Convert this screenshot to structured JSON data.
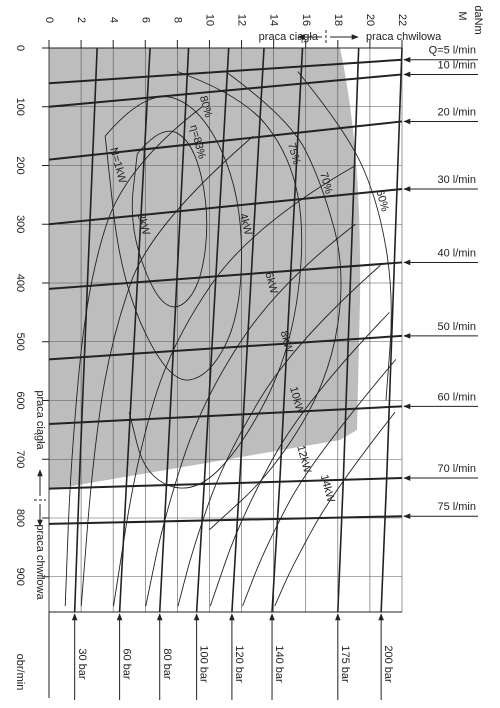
{
  "chart_data": {
    "type": "performance-map",
    "x_label": "M",
    "x_unit": "daNm",
    "y_label": "obr/min",
    "zones": [
      "praca ciągła",
      "praca chwilowa"
    ],
    "xlim": [
      0,
      22
    ],
    "xticks": [
      0,
      2,
      4,
      6,
      8,
      10,
      12,
      14,
      16,
      18,
      20,
      22
    ],
    "ylim": [
      0,
      960
    ],
    "yticks": [
      0,
      100,
      200,
      300,
      400,
      500,
      600,
      700,
      800,
      900
    ],
    "grid": true,
    "line_color": "#222",
    "zone_color": "#bdbdbd",
    "flow_series": [
      {
        "name": "Q=5 l/min",
        "x": [
          0,
          22
        ],
        "values": [
          60,
          20
        ]
      },
      {
        "name": "10 l/min",
        "x": [
          0,
          22
        ],
        "values": [
          100,
          45
        ]
      },
      {
        "name": "20 l/min",
        "x": [
          0,
          22
        ],
        "values": [
          190,
          125
        ]
      },
      {
        "name": "30 l/min",
        "x": [
          0,
          22
        ],
        "values": [
          300,
          240
        ]
      },
      {
        "name": "40 l/min",
        "x": [
          0,
          22
        ],
        "values": [
          410,
          365
        ]
      },
      {
        "name": "50 l/min",
        "x": [
          0,
          22
        ],
        "values": [
          530,
          490
        ]
      },
      {
        "name": "60 l/min",
        "x": [
          0,
          22
        ],
        "values": [
          640,
          610
        ]
      },
      {
        "name": "70 l/min",
        "x": [
          0,
          22
        ],
        "values": [
          750,
          732
        ]
      },
      {
        "name": "75 l/min",
        "x": [
          0,
          22
        ],
        "values": [
          810,
          797
        ]
      }
    ],
    "pressure_series": [
      {
        "name": "30 bar",
        "x": [
          3.0,
          2.2,
          1.6
        ],
        "values": [
          0,
          500,
          960
        ]
      },
      {
        "name": "60 bar",
        "x": [
          6.3,
          5.3,
          4.4
        ],
        "values": [
          0,
          500,
          960
        ]
      },
      {
        "name": "80 bar",
        "x": [
          8.7,
          7.8,
          6.9
        ],
        "values": [
          0,
          500,
          960
        ]
      },
      {
        "name": "100 bar",
        "x": [
          11.2,
          10.2,
          9.2
        ],
        "values": [
          0,
          500,
          960
        ]
      },
      {
        "name": "120 bar",
        "x": [
          13.4,
          12.4,
          11.4
        ],
        "values": [
          0,
          500,
          960
        ]
      },
      {
        "name": "140 bar",
        "x": [
          15.8,
          14.9,
          13.9
        ],
        "values": [
          0,
          500,
          960
        ]
      },
      {
        "name": "175 bar",
        "x": [
          19.3,
          18.7,
          18.0
        ],
        "values": [
          0,
          500,
          960
        ]
      },
      {
        "name": "200 bar",
        "x": [
          22,
          21.4,
          20.7
        ],
        "values": [
          0,
          500,
          960
        ]
      }
    ],
    "power_series": [
      {
        "name": "N=1kW",
        "x": [
          9.55,
          4.78,
          2.39,
          1.36,
          1.01
        ],
        "values": [
          100,
          200,
          400,
          700,
          950
        ]
      },
      {
        "name": "2kW",
        "x": [
          12.73,
          6.37,
          3.82,
          2.73,
          2.01
        ],
        "values": [
          150,
          300,
          500,
          700,
          950
        ]
      },
      {
        "name": "4kW",
        "x": [
          19.1,
          12.73,
          7.64,
          5.46,
          4.02
        ],
        "values": [
          200,
          300,
          500,
          700,
          950
        ]
      },
      {
        "name": "6kW",
        "x": [
          19.1,
          14.33,
          9.55,
          7.16,
          6.03
        ],
        "values": [
          300,
          400,
          600,
          800,
          950
        ]
      },
      {
        "name": "8kW",
        "x": [
          20.65,
          15.28,
          10.91,
          8.99,
          8.04
        ],
        "values": [
          370,
          500,
          700,
          850,
          950
        ]
      },
      {
        "name": "10kW",
        "x": [
          21.22,
          15.92,
          11.94,
          10.05
        ],
        "values": [
          450,
          600,
          800,
          950
        ]
      },
      {
        "name": "12kW",
        "x": [
          21.62,
          16.37,
          13.48,
          12.06
        ],
        "values": [
          530,
          700,
          850,
          950
        ]
      },
      {
        "name": "14kW",
        "x": [
          21.56,
          17.83,
          15.19,
          14.07
        ],
        "values": [
          620,
          750,
          880,
          950
        ]
      }
    ],
    "efficiency_series": [
      {
        "name": "η=83%",
        "x": [
          5.5,
          7,
          9,
          10,
          9.5,
          8,
          6.5,
          5,
          5.5
        ],
        "values": [
          180,
          130,
          160,
          280,
          400,
          450,
          420,
          300,
          180
        ]
      },
      {
        "name": "80%",
        "x": [
          3.5,
          6,
          9.5,
          12,
          12,
          10,
          7.5,
          4.5,
          3.5
        ],
        "values": [
          150,
          70,
          100,
          250,
          450,
          560,
          570,
          400,
          150
        ]
      },
      {
        "name": "75%",
        "x": [
          8,
          12,
          15,
          16,
          15,
          12,
          9,
          6,
          5
        ],
        "values": [
          40,
          80,
          180,
          320,
          520,
          680,
          760,
          730,
          620
        ]
      },
      {
        "name": "70%",
        "x": [
          11,
          15,
          17,
          18.5,
          17.5,
          14,
          10
        ],
        "values": [
          40,
          120,
          230,
          380,
          560,
          720,
          820
        ]
      },
      {
        "name": "60%",
        "x": [
          15.5,
          18.5,
          20.5,
          21.5,
          21
        ],
        "values": [
          40,
          140,
          260,
          420,
          600
        ]
      }
    ]
  }
}
